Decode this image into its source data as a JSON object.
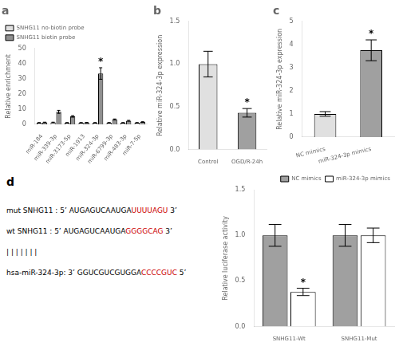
{
  "chart_data": [
    {
      "type": "bar",
      "title": "a",
      "categories": [
        "miR-184",
        "miR-339-3p",
        "miR-3173-5p",
        "miR-1913",
        "miR-324-3p",
        "miR-6799-3p",
        "miR-483-3p",
        "miR-7-5p"
      ],
      "series": [
        {
          "name": "SNHG11 no-biotin probe",
          "color": "#e0e0e0",
          "values": [
            1.0,
            1.2,
            1.0,
            1.0,
            1.0,
            1.0,
            1.0,
            1.0
          ],
          "errors": [
            0.1,
            0.2,
            0.1,
            0.1,
            0.1,
            0.1,
            0.1,
            0.1
          ]
        },
        {
          "name": "SNHG11 biotin probe",
          "color": "#909090",
          "values": [
            1.2,
            8.2,
            5.2,
            1.1,
            33.5,
            3.2,
            2.3,
            1.5
          ],
          "errors": [
            0.2,
            1.0,
            0.5,
            0.15,
            3.8,
            0.3,
            0.3,
            0.2
          ]
        }
      ],
      "ylabel": "Relative enrichment",
      "ylim": [
        0,
        50
      ],
      "yticks": [
        0,
        10,
        20,
        30,
        40,
        50
      ],
      "grid": false,
      "legend": "upper left",
      "annotations": [
        {
          "text": "*",
          "category": "miR-324-3p",
          "series": "SNHG11 biotin probe"
        }
      ]
    },
    {
      "type": "bar",
      "title": "b",
      "categories": [
        "Control",
        "OGD/R-24h"
      ],
      "values": [
        1.0,
        0.43
      ],
      "errors": [
        0.15,
        0.05
      ],
      "colors": [
        "#e0e0e0",
        "#a0a0a0"
      ],
      "ylabel": "Relative miR-324-3p expression",
      "ylim": [
        0,
        1.5
      ],
      "yticks": [
        {
          "value": 0.0,
          "label": "0.0"
        },
        {
          "value": 0.5,
          "label": "0.5"
        },
        {
          "value": 1.0,
          "label": "1.0"
        },
        {
          "value": 1.5,
          "label": "1.5"
        }
      ],
      "grid": false,
      "annotations": [
        {
          "text": "*",
          "category": "OGD/R-24h"
        }
      ]
    },
    {
      "type": "bar",
      "title": "c",
      "categories": [
        "NC mimics",
        "miR-324-3p mimics"
      ],
      "values": [
        1.0,
        3.75
      ],
      "errors": [
        0.1,
        0.45
      ],
      "colors": [
        "#e0e0e0",
        "#a0a0a0"
      ],
      "ylabel": "Relative miR-324-3p expression",
      "ylim": [
        0,
        5
      ],
      "yticks": [
        0,
        1,
        2,
        3,
        4,
        5
      ],
      "grid": false,
      "annotations": [
        {
          "text": "*",
          "category": "miR-324-3p mimics"
        }
      ]
    },
    {
      "type": "text",
      "title": "d",
      "annotations": [
        [
          {
            "text": "mut SNHG11 : 5’ AUGAGUCAAUGA"
          },
          {
            "text": "UUUUAGU",
            "color": "#cc0000"
          },
          {
            "text": " 3’"
          }
        ],
        [
          {
            "text": "wt SNHG11 : 5’ AUGAGUCAAUGA"
          },
          {
            "text": "GGGGCAG",
            "color": "#cc0000"
          },
          {
            "text": " 3’"
          }
        ],
        [
          {
            "text": "| | | | | | |"
          }
        ],
        [
          {
            "text": "hsa-miR-324-3p: 3’ GGUCGUCGUGGA"
          },
          {
            "text": "CCCCGUC",
            "color": "#cc0000"
          },
          {
            "text": " 5’"
          }
        ]
      ]
    },
    {
      "type": "bar",
      "categories": [
        "SNHG11-Wt",
        "SNHG11-Mut"
      ],
      "series": [
        {
          "name": "NC mimics",
          "color": "#a0a0a0",
          "values": [
            1.0,
            1.0
          ],
          "errors": [
            0.12,
            0.12
          ]
        },
        {
          "name": "miR-324-3p mimics",
          "color": "#ffffff",
          "values": [
            0.38,
            1.0
          ],
          "errors": [
            0.04,
            0.08
          ]
        }
      ],
      "ylabel": "Relative luciferase activity",
      "ylim": [
        0,
        1.5
      ],
      "yticks": [
        {
          "value": 0.0,
          "label": "0.0"
        },
        {
          "value": 0.5,
          "label": "0.5"
        },
        {
          "value": 1.0,
          "label": "1.0"
        },
        {
          "value": 1.5,
          "label": "1.5"
        }
      ],
      "grid": false,
      "legend": "upper right",
      "annotations": [
        {
          "text": "*",
          "category": "SNHG11-Wt",
          "series": "miR-324-3p mimics"
        }
      ]
    }
  ]
}
